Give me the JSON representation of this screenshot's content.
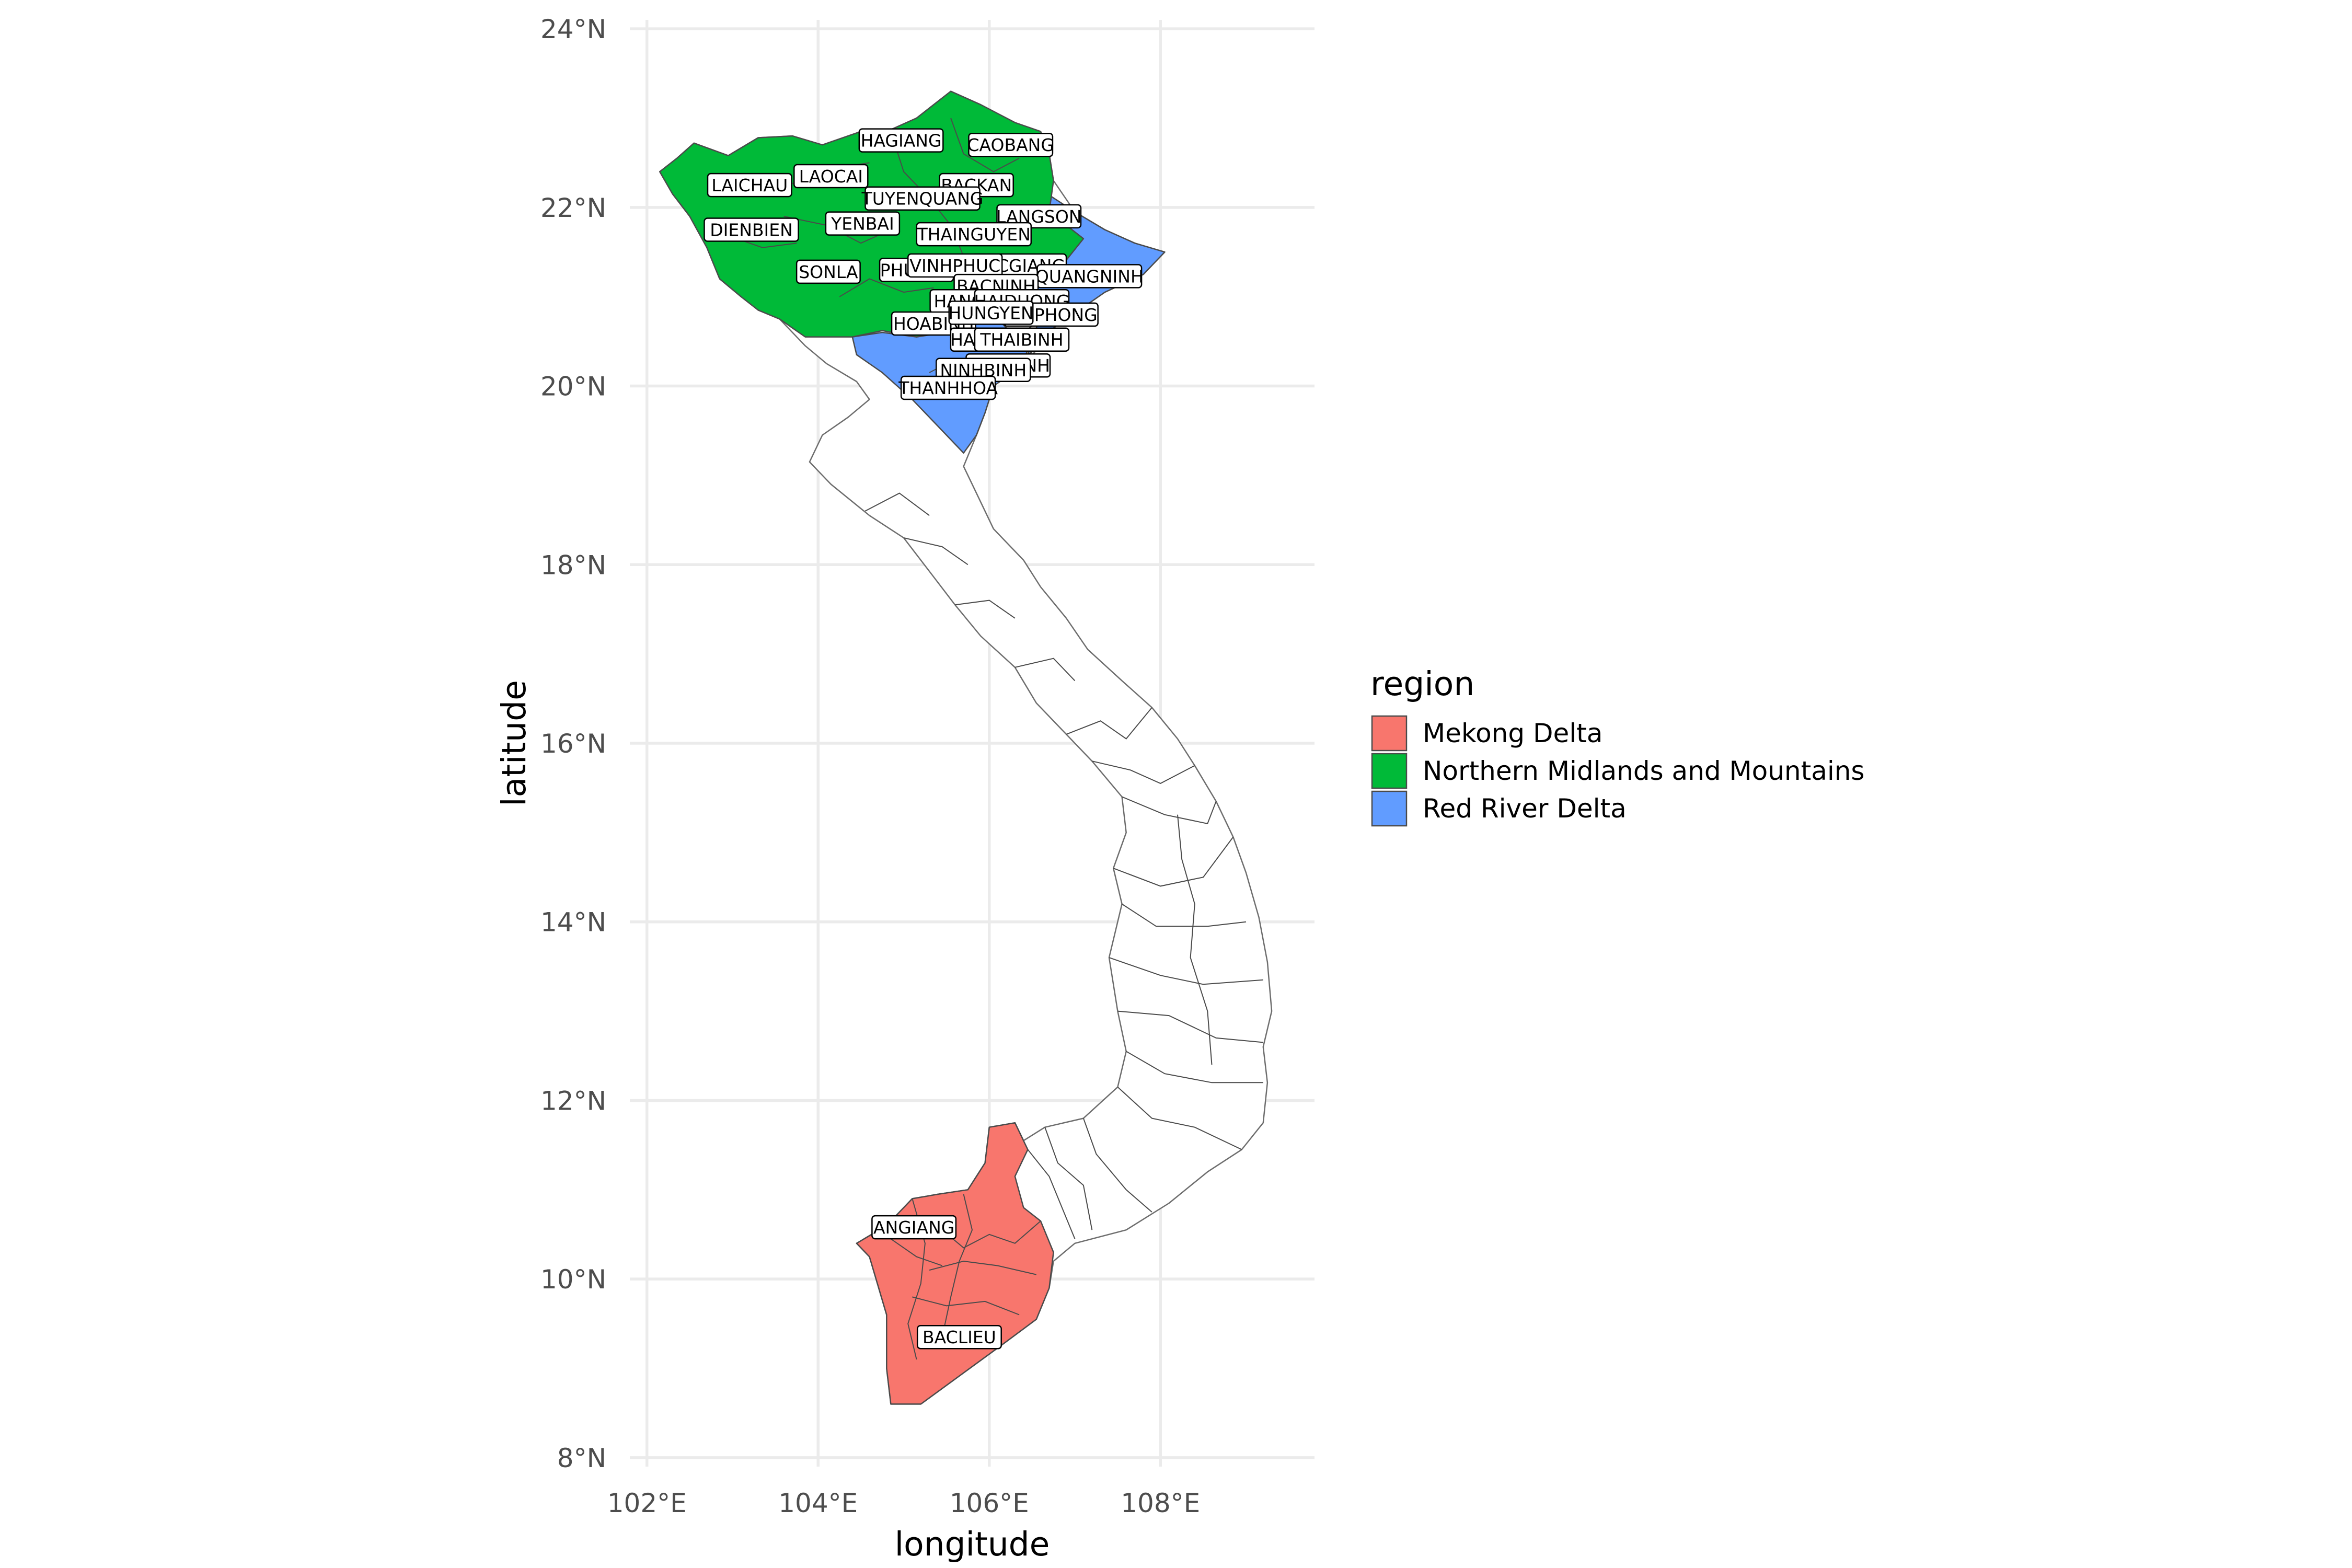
{
  "chart_data": {
    "type": "choropleth",
    "xlabel": "longitude",
    "ylabel": "latitude",
    "xlim": [
      101.8,
      109.8
    ],
    "ylim": [
      7.9,
      24.1
    ],
    "x_ticks": [
      "102°E",
      "104°E",
      "106°E",
      "108°E"
    ],
    "y_ticks": [
      "8°N",
      "10°N",
      "12°N",
      "14°N",
      "16°N",
      "18°N",
      "20°N",
      "22°N",
      "24°N"
    ],
    "grid": true,
    "legend": {
      "title": "region",
      "placement": "right",
      "entries": [
        {
          "label": "Mekong Delta",
          "color": "#F8766D"
        },
        {
          "label": "Northern Midlands and Mountains",
          "color": "#00BA38"
        },
        {
          "label": "Red River Delta",
          "color": "#619CFF"
        }
      ]
    },
    "province_labels": [
      {
        "text": "HAGIANG",
        "lon": 104.97,
        "lat": 22.75
      },
      {
        "text": "CAOBANG",
        "lon": 106.25,
        "lat": 22.7
      },
      {
        "text": "LAICHAU",
        "lon": 103.2,
        "lat": 22.25
      },
      {
        "text": "LAOCAI",
        "lon": 104.15,
        "lat": 22.35
      },
      {
        "text": "BACKAN",
        "lon": 105.85,
        "lat": 22.25
      },
      {
        "text": "TUYENQUANG",
        "lon": 105.22,
        "lat": 22.1
      },
      {
        "text": "LANGSON",
        "lon": 106.58,
        "lat": 21.9
      },
      {
        "text": "DIENBIEN",
        "lon": 103.22,
        "lat": 21.75
      },
      {
        "text": "YENBAI",
        "lon": 104.52,
        "lat": 21.82
      },
      {
        "text": "THAINGUYEN",
        "lon": 105.82,
        "lat": 21.7
      },
      {
        "text": "BACGIANG",
        "lon": 106.35,
        "lat": 21.35
      },
      {
        "text": "QUANGNINH",
        "lon": 107.17,
        "lat": 21.23
      },
      {
        "text": "SONLA",
        "lon": 104.12,
        "lat": 21.28
      },
      {
        "text": "PHUTHO",
        "lon": 105.15,
        "lat": 21.3
      },
      {
        "text": "VINHPHUC",
        "lon": 105.6,
        "lat": 21.35
      },
      {
        "text": "BACNINH",
        "lon": 106.08,
        "lat": 21.12
      },
      {
        "text": "HANOI",
        "lon": 105.68,
        "lat": 20.95
      },
      {
        "text": "HAIDUONG",
        "lon": 106.38,
        "lat": 20.95
      },
      {
        "text": "HAIPHONG",
        "lon": 106.72,
        "lat": 20.8
      },
      {
        "text": "HOABINH",
        "lon": 105.35,
        "lat": 20.7
      },
      {
        "text": "HUNGYEN",
        "lon": 106.02,
        "lat": 20.82
      },
      {
        "text": "HANAM",
        "lon": 105.92,
        "lat": 20.52
      },
      {
        "text": "THAIBINH",
        "lon": 106.38,
        "lat": 20.52
      },
      {
        "text": "NAMDINH",
        "lon": 106.22,
        "lat": 20.23
      },
      {
        "text": "NINHBINH",
        "lon": 105.93,
        "lat": 20.18
      },
      {
        "text": "THANHHOA",
        "lon": 105.52,
        "lat": 19.98
      },
      {
        "text": "ANGIANG",
        "lon": 105.12,
        "lat": 10.58
      },
      {
        "text": "BACLIEU",
        "lon": 105.65,
        "lat": 9.35
      }
    ]
  }
}
